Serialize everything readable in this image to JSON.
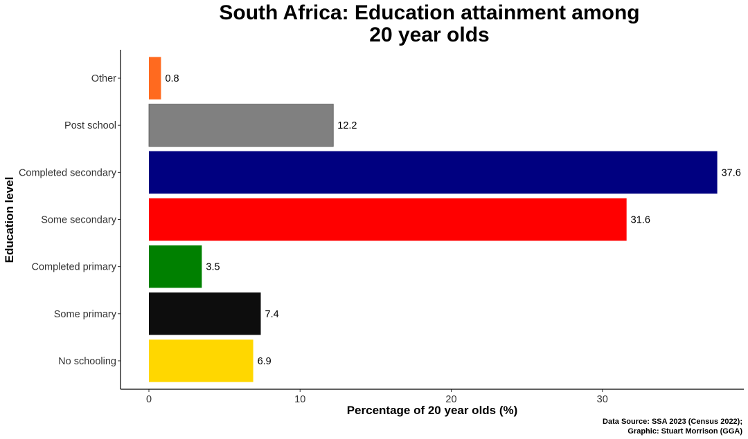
{
  "chart_data": {
    "type": "bar",
    "orientation": "horizontal",
    "title": [
      "South Africa: Education attainment among",
      "20 year olds"
    ],
    "xlabel": "Percentage of 20 year olds (%)",
    "ylabel": "Education level",
    "xlim": [
      0,
      38.5
    ],
    "xticks": [
      0,
      10,
      20,
      30
    ],
    "grid": false,
    "categories": [
      "Other",
      "Post school",
      "Completed secondary",
      "Some secondary",
      "Completed primary",
      "Some primary",
      "No schooling"
    ],
    "values": [
      0.8,
      12.2,
      37.6,
      31.6,
      3.5,
      7.4,
      6.9
    ],
    "value_labels": [
      "0.8",
      "12.2",
      "37.6",
      "31.6",
      "3.5",
      "7.4",
      "6.9"
    ],
    "colors": [
      "#FF6A1F",
      "#808080",
      "#000080",
      "#FF0000",
      "#008000",
      "#0D0D0D",
      "#FFD700"
    ],
    "caption": [
      "Data Source: SSA 2023 (Census 2022);",
      "Graphic: Stuart Morrison (GGA)"
    ]
  }
}
